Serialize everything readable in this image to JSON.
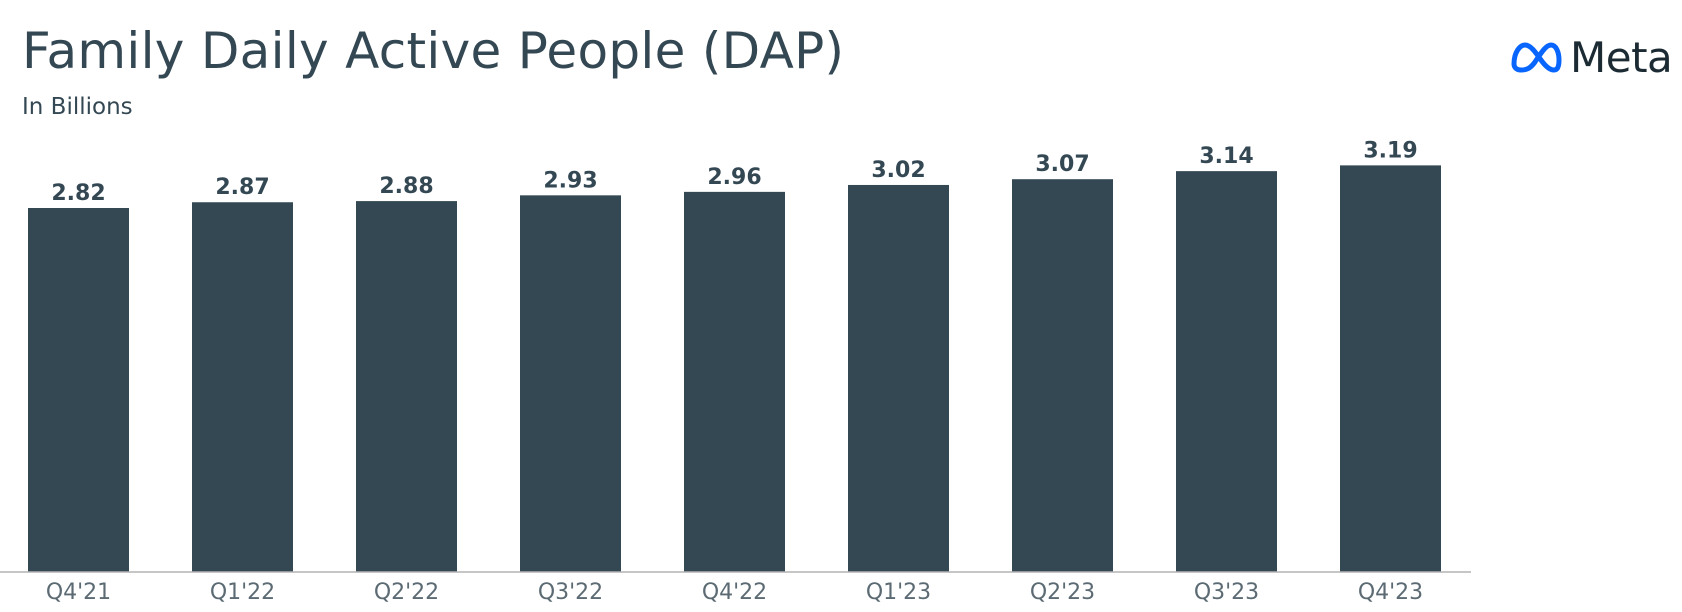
{
  "header": {
    "title": "Family Daily Active People (DAP)",
    "subtitle": "In Billions"
  },
  "logo": {
    "text": "Meta",
    "icon": "meta-infinity-icon",
    "icon_color": "#0866ff"
  },
  "colors": {
    "bar": "#344854",
    "text": "#344854",
    "axis": "#b3b3b3"
  },
  "chart_data": {
    "type": "bar",
    "title": "Family Daily Active People (DAP)",
    "subtitle": "In Billions",
    "categories": [
      "Q4'21",
      "Q1'22",
      "Q2'22",
      "Q3'22",
      "Q4'22",
      "Q1'23",
      "Q2'23",
      "Q3'23",
      "Q4'23"
    ],
    "values": [
      2.82,
      2.87,
      2.88,
      2.93,
      2.96,
      3.02,
      3.07,
      3.14,
      3.19
    ],
    "value_labels": [
      "2.82",
      "2.87",
      "2.88",
      "2.93",
      "2.96",
      "3.02",
      "3.07",
      "3.14",
      "3.19"
    ],
    "ylim": [
      0,
      3.19
    ],
    "grid": false,
    "legend": "none"
  }
}
